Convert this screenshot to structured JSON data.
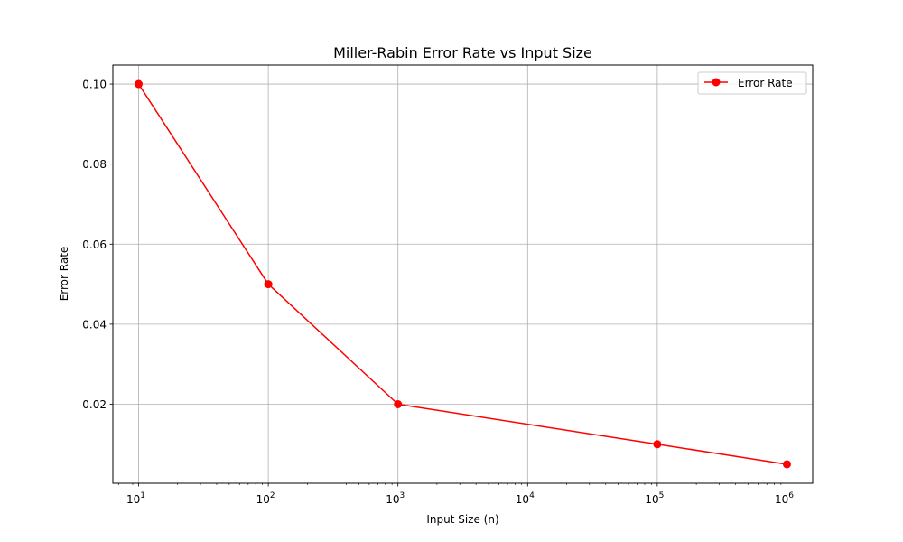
{
  "chart_data": {
    "type": "line",
    "title": "Miller-Rabin Error Rate vs Input Size",
    "xlabel": "Input Size (n)",
    "ylabel": "Error Rate",
    "x_scale": "log",
    "x_ticks": [
      {
        "value": 10,
        "base": "10",
        "exp": "1"
      },
      {
        "value": 100,
        "base": "10",
        "exp": "2"
      },
      {
        "value": 1000,
        "base": "10",
        "exp": "3"
      },
      {
        "value": 10000,
        "base": "10",
        "exp": "4"
      },
      {
        "value": 100000,
        "base": "10",
        "exp": "5"
      },
      {
        "value": 1000000,
        "base": "10",
        "exp": "6"
      }
    ],
    "y_ticks": [
      "0.02",
      "0.04",
      "0.06",
      "0.08",
      "0.10"
    ],
    "xlim": [
      6.33,
      1580000
    ],
    "ylim": [
      0.00025,
      0.10475
    ],
    "grid": true,
    "legend_position": "top-right",
    "series": [
      {
        "name": "Error Rate",
        "color": "#ff0000",
        "marker": "circle",
        "x": [
          10,
          100,
          1000,
          100000,
          1000000
        ],
        "y": [
          0.1,
          0.05,
          0.02,
          0.01,
          0.005
        ]
      }
    ]
  }
}
